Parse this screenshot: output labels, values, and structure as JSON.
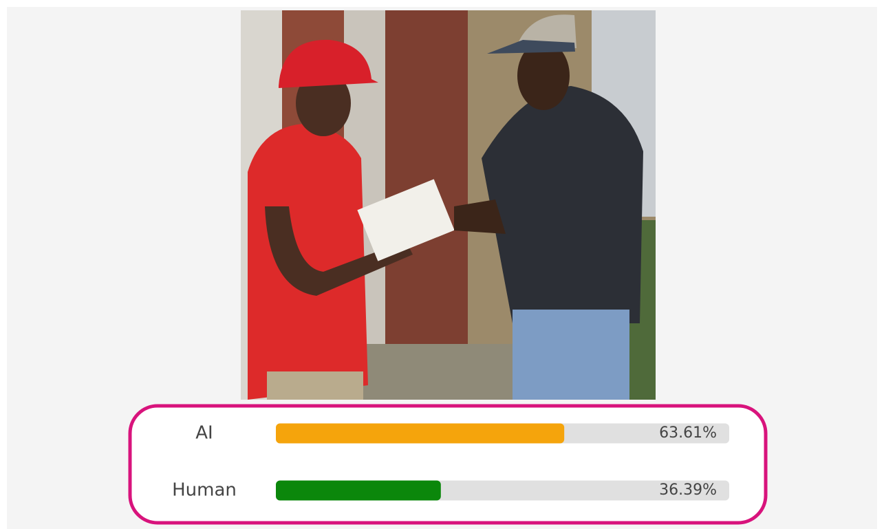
{
  "chart_data": {
    "type": "bar",
    "orientation": "horizontal",
    "categories": [
      "AI",
      "Human"
    ],
    "values": [
      63.61,
      36.39
    ],
    "value_labels": [
      "63.61%",
      "36.39%"
    ],
    "colors": [
      "#f5a40c",
      "#0b870b"
    ],
    "track_color": "#e0e0e0",
    "xlim": [
      0,
      100
    ]
  }
}
